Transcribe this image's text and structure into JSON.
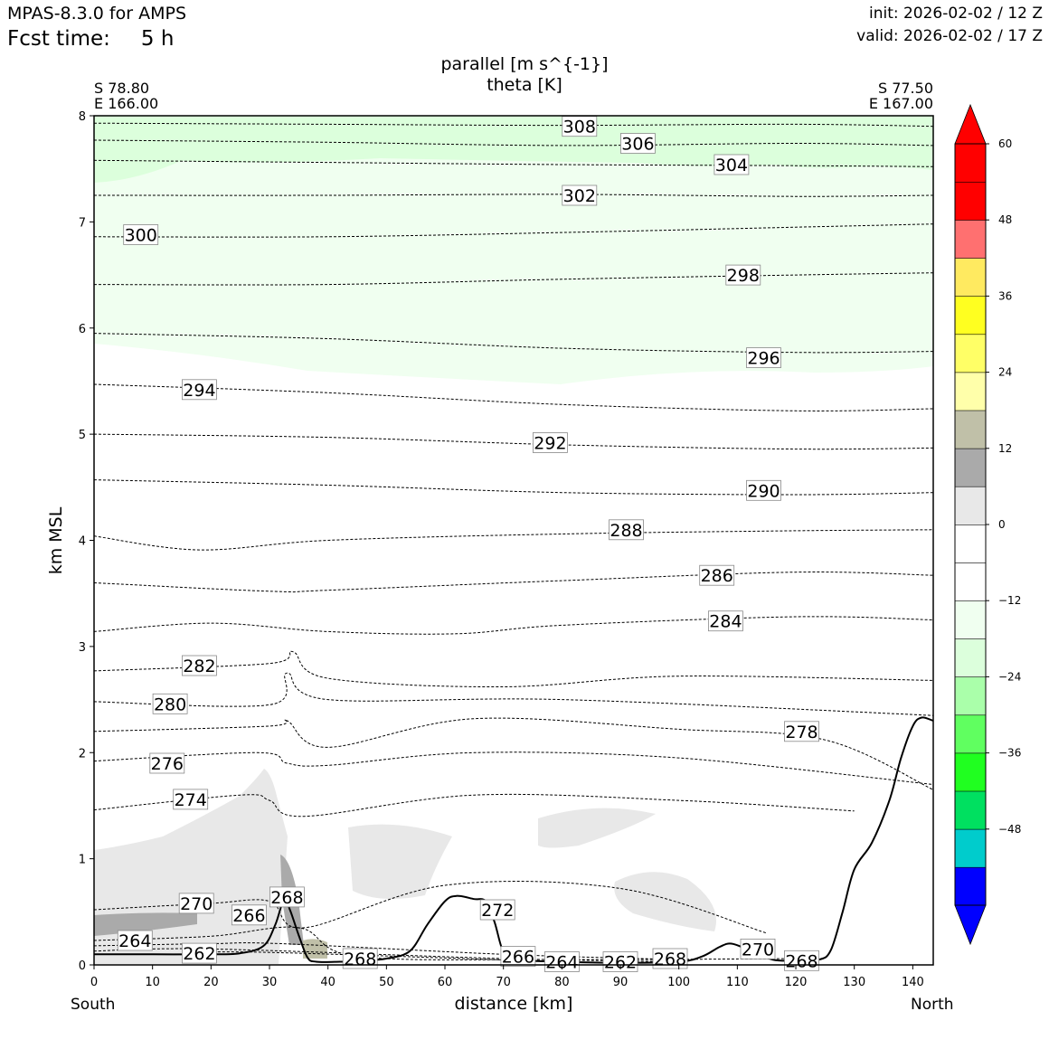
{
  "header": {
    "model": "MPAS-8.3.0 for AMPS",
    "fcst_label": "Fcst time:",
    "fcst_value": "5 h",
    "init": "init: 2026-02-02 / 12 Z",
    "valid": "valid: 2026-02-02 / 17 Z"
  },
  "endpoints": {
    "left_lat": "S 78.80",
    "left_lon": "E 166.00",
    "right_lat": "S 77.50",
    "right_lon": "E 167.00",
    "left_dir": "South",
    "right_dir": "North"
  },
  "chart_data": {
    "type": "contour",
    "title_line1": "parallel [m s^{-1}]",
    "title_line2": "theta [K]",
    "xlabel": "distance [km]",
    "ylabel": "km MSL",
    "xlim": [
      0,
      143.5
    ],
    "ylim": [
      0,
      8
    ],
    "xticks": [
      0,
      10,
      20,
      30,
      40,
      50,
      60,
      70,
      80,
      90,
      100,
      110,
      120,
      130,
      140
    ],
    "yticks": [
      0,
      1,
      2,
      3,
      4,
      5,
      6,
      7,
      8
    ],
    "colorbar": {
      "min": -60,
      "max": 60,
      "step": 6,
      "tick_values": [
        60,
        48,
        36,
        24,
        12,
        0,
        -12,
        -24,
        -36,
        -48
      ],
      "tick_labels": [
        "60",
        "48",
        "36",
        "24",
        "12",
        "0",
        "−12",
        "−24",
        "−36",
        "−48"
      ],
      "colors": [
        "#0000ff",
        "#00cccc",
        "#00e060",
        "#20ff20",
        "#60ff60",
        "#aaffaa",
        "#dcffdc",
        "#f0fff0",
        "#ffffff",
        "#ffffff",
        "#e8e8e8",
        "#aaaaaa",
        "#c0c0a8",
        "#ffffaa",
        "#ffff66",
        "#ffff20",
        "#ffea60",
        "#ff7070",
        "#ff0000",
        "#ff0000"
      ],
      "extend": "both",
      "under_color": "#0000ff",
      "over_color": "#ff0000"
    },
    "terrain": [
      [
        0,
        0.1
      ],
      [
        10,
        0.1
      ],
      [
        20,
        0.1
      ],
      [
        25,
        0.11
      ],
      [
        29,
        0.18
      ],
      [
        31,
        0.38
      ],
      [
        32.5,
        0.62
      ],
      [
        33.5,
        0.52
      ],
      [
        35,
        0.28
      ],
      [
        36.5,
        0.07
      ],
      [
        38,
        0.03
      ],
      [
        42,
        0.03
      ],
      [
        46,
        0.04
      ],
      [
        50,
        0.06
      ],
      [
        54,
        0.13
      ],
      [
        57,
        0.38
      ],
      [
        60,
        0.6
      ],
      [
        62,
        0.65
      ],
      [
        65,
        0.62
      ],
      [
        67,
        0.6
      ],
      [
        68.5,
        0.4
      ],
      [
        70,
        0.12
      ],
      [
        72,
        0.05
      ],
      [
        80,
        0.03
      ],
      [
        90,
        0.02
      ],
      [
        100,
        0.03
      ],
      [
        104,
        0.08
      ],
      [
        107,
        0.17
      ],
      [
        109,
        0.2
      ],
      [
        112,
        0.14
      ],
      [
        116,
        0.05
      ],
      [
        120,
        0.04
      ],
      [
        124,
        0.05
      ],
      [
        126,
        0.14
      ],
      [
        128,
        0.5
      ],
      [
        130,
        0.9
      ],
      [
        133,
        1.15
      ],
      [
        136,
        1.55
      ],
      [
        138,
        1.95
      ],
      [
        140,
        2.25
      ],
      [
        141.5,
        2.33
      ],
      [
        143.5,
        2.3
      ]
    ],
    "theta_lines": [
      {
        "value": 308,
        "points": [
          [
            0,
            7.93
          ],
          [
            40,
            7.92
          ],
          [
            80,
            7.91
          ],
          [
            120,
            7.92
          ],
          [
            143.5,
            7.9
          ]
        ]
      },
      {
        "value": 306,
        "points": [
          [
            0,
            7.77
          ],
          [
            40,
            7.75
          ],
          [
            80,
            7.72
          ],
          [
            120,
            7.74
          ],
          [
            143.5,
            7.72
          ]
        ]
      },
      {
        "value": 304,
        "points": [
          [
            0,
            7.58
          ],
          [
            40,
            7.56
          ],
          [
            80,
            7.54
          ],
          [
            120,
            7.53
          ],
          [
            143.5,
            7.52
          ]
        ]
      },
      {
        "value": 302,
        "points": [
          [
            0,
            7.25
          ],
          [
            40,
            7.25
          ],
          [
            80,
            7.26
          ],
          [
            120,
            7.24
          ],
          [
            143.5,
            7.25
          ]
        ]
      },
      {
        "value": 300,
        "points": [
          [
            0,
            6.86
          ],
          [
            40,
            6.86
          ],
          [
            80,
            6.9
          ],
          [
            120,
            6.95
          ],
          [
            143.5,
            6.98
          ]
        ]
      },
      {
        "value": 298,
        "points": [
          [
            0,
            6.41
          ],
          [
            40,
            6.41
          ],
          [
            80,
            6.46
          ],
          [
            120,
            6.5
          ],
          [
            143.5,
            6.52
          ]
        ]
      },
      {
        "value": 296,
        "points": [
          [
            0,
            5.95
          ],
          [
            40,
            5.9
          ],
          [
            80,
            5.81
          ],
          [
            120,
            5.77
          ],
          [
            143.5,
            5.78
          ]
        ]
      },
      {
        "value": 294,
        "points": [
          [
            0,
            5.47
          ],
          [
            40,
            5.39
          ],
          [
            80,
            5.28
          ],
          [
            120,
            5.22
          ],
          [
            143.5,
            5.24
          ]
        ]
      },
      {
        "value": 292,
        "points": [
          [
            0,
            5.0
          ],
          [
            40,
            4.97
          ],
          [
            80,
            4.9
          ],
          [
            120,
            4.86
          ],
          [
            143.5,
            4.87
          ]
        ]
      },
      {
        "value": 290,
        "points": [
          [
            0,
            4.57
          ],
          [
            40,
            4.52
          ],
          [
            80,
            4.45
          ],
          [
            120,
            4.43
          ],
          [
            143.5,
            4.45
          ]
        ]
      },
      {
        "value": 288,
        "points": [
          [
            0,
            4.04
          ],
          [
            18,
            3.91
          ],
          [
            40,
            4.0
          ],
          [
            80,
            4.06
          ],
          [
            120,
            4.09
          ],
          [
            143.5,
            4.1
          ]
        ]
      },
      {
        "value": 286,
        "points": [
          [
            0,
            3.6
          ],
          [
            30,
            3.52
          ],
          [
            40,
            3.53
          ],
          [
            80,
            3.62
          ],
          [
            120,
            3.7
          ],
          [
            143.5,
            3.67
          ]
        ]
      },
      {
        "value": 284,
        "points": [
          [
            0,
            3.14
          ],
          [
            20,
            3.22
          ],
          [
            40,
            3.14
          ],
          [
            62,
            3.12
          ],
          [
            80,
            3.2
          ],
          [
            120,
            3.28
          ],
          [
            143.5,
            3.25
          ]
        ]
      },
      {
        "value": 282,
        "points": [
          [
            0,
            2.77
          ],
          [
            30,
            2.84
          ],
          [
            34,
            2.95
          ],
          [
            40,
            2.7
          ],
          [
            70,
            2.62
          ],
          [
            100,
            2.72
          ],
          [
            143.5,
            2.68
          ]
        ]
      },
      {
        "value": 280,
        "points": [
          [
            0,
            2.48
          ],
          [
            30,
            2.45
          ],
          [
            33,
            2.75
          ],
          [
            40,
            2.5
          ],
          [
            80,
            2.5
          ],
          [
            143.5,
            2.35
          ]
        ]
      },
      {
        "value": 278,
        "points": [
          [
            0,
            2.2
          ],
          [
            30,
            2.25
          ],
          [
            33,
            2.3
          ],
          [
            40,
            2.05
          ],
          [
            65,
            2.32
          ],
          [
            100,
            2.22
          ],
          [
            125,
            2.12
          ],
          [
            143.5,
            1.65
          ]
        ]
      },
      {
        "value": 276,
        "points": [
          [
            0,
            1.92
          ],
          [
            28,
            2.0
          ],
          [
            33,
            1.9
          ],
          [
            40,
            1.88
          ],
          [
            65,
            2.0
          ],
          [
            100,
            1.95
          ],
          [
            143.5,
            1.7
          ]
        ]
      },
      {
        "value": 274,
        "points": [
          [
            0,
            1.46
          ],
          [
            25,
            1.6
          ],
          [
            30,
            1.55
          ],
          [
            36,
            1.4
          ],
          [
            65,
            1.6
          ],
          [
            100,
            1.55
          ],
          [
            130,
            1.45
          ]
        ]
      },
      {
        "value": 270,
        "points": [
          [
            0,
            0.52
          ],
          [
            20,
            0.58
          ],
          [
            30,
            0.6
          ],
          [
            36,
            0.35
          ],
          [
            60,
            0.75
          ],
          [
            90,
            0.72
          ],
          [
            115,
            0.3
          ]
        ]
      },
      {
        "value": 268,
        "points": [
          [
            0,
            0.23
          ],
          [
            20,
            0.27
          ],
          [
            35,
            0.35
          ],
          [
            45,
            0.08
          ],
          [
            80,
            0.05
          ],
          [
            120,
            0.06
          ]
        ]
      },
      {
        "value": 266,
        "points": [
          [
            0,
            0.18
          ],
          [
            20,
            0.2
          ],
          [
            32,
            0.2
          ],
          [
            70,
            0.1
          ],
          [
            100,
            0.05
          ]
        ]
      },
      {
        "value": 264,
        "points": [
          [
            0,
            0.13
          ],
          [
            20,
            0.15
          ],
          [
            70,
            0.06
          ],
          [
            100,
            0.03
          ]
        ]
      },
      {
        "value": 262,
        "points": [
          [
            15,
            0.1
          ],
          [
            28,
            0.12
          ],
          [
            80,
            0.03
          ],
          [
            95,
            0.02
          ]
        ]
      }
    ],
    "contour_labels": [
      {
        "text": "308",
        "x": 83,
        "y": 7.9
      },
      {
        "text": "306",
        "x": 93,
        "y": 7.74
      },
      {
        "text": "304",
        "x": 109,
        "y": 7.54
      },
      {
        "text": "302",
        "x": 83,
        "y": 7.25
      },
      {
        "text": "300",
        "x": 8,
        "y": 6.88
      },
      {
        "text": "298",
        "x": 111,
        "y": 6.5
      },
      {
        "text": "296",
        "x": 114.5,
        "y": 5.72
      },
      {
        "text": "294",
        "x": 18,
        "y": 5.42
      },
      {
        "text": "292",
        "x": 78,
        "y": 4.92
      },
      {
        "text": "290",
        "x": 114.5,
        "y": 4.47
      },
      {
        "text": "288",
        "x": 91,
        "y": 4.1
      },
      {
        "text": "286",
        "x": 106.5,
        "y": 3.67
      },
      {
        "text": "284",
        "x": 108,
        "y": 3.24
      },
      {
        "text": "282",
        "x": 18,
        "y": 2.82
      },
      {
        "text": "280",
        "x": 13,
        "y": 2.46
      },
      {
        "text": "278",
        "x": 121,
        "y": 2.2
      },
      {
        "text": "276",
        "x": 12.5,
        "y": 1.9
      },
      {
        "text": "274",
        "x": 16.5,
        "y": 1.56
      },
      {
        "text": "272",
        "x": 69,
        "y": 0.52
      },
      {
        "text": "270",
        "x": 17.5,
        "y": 0.58
      },
      {
        "text": "270",
        "x": 113.5,
        "y": 0.15
      },
      {
        "text": "268",
        "x": 33,
        "y": 0.64
      },
      {
        "text": "268",
        "x": 45.5,
        "y": 0.06
      },
      {
        "text": "268",
        "x": 98.5,
        "y": 0.06
      },
      {
        "text": "268",
        "x": 121,
        "y": 0.04
      },
      {
        "text": "266",
        "x": 26.5,
        "y": 0.47
      },
      {
        "text": "266",
        "x": 72.5,
        "y": 0.08
      },
      {
        "text": "264",
        "x": 7,
        "y": 0.23
      },
      {
        "text": "264",
        "x": 80,
        "y": 0.03
      },
      {
        "text": "262",
        "x": 18,
        "y": 0.11
      },
      {
        "text": "262",
        "x": 90,
        "y": 0.03
      }
    ]
  }
}
